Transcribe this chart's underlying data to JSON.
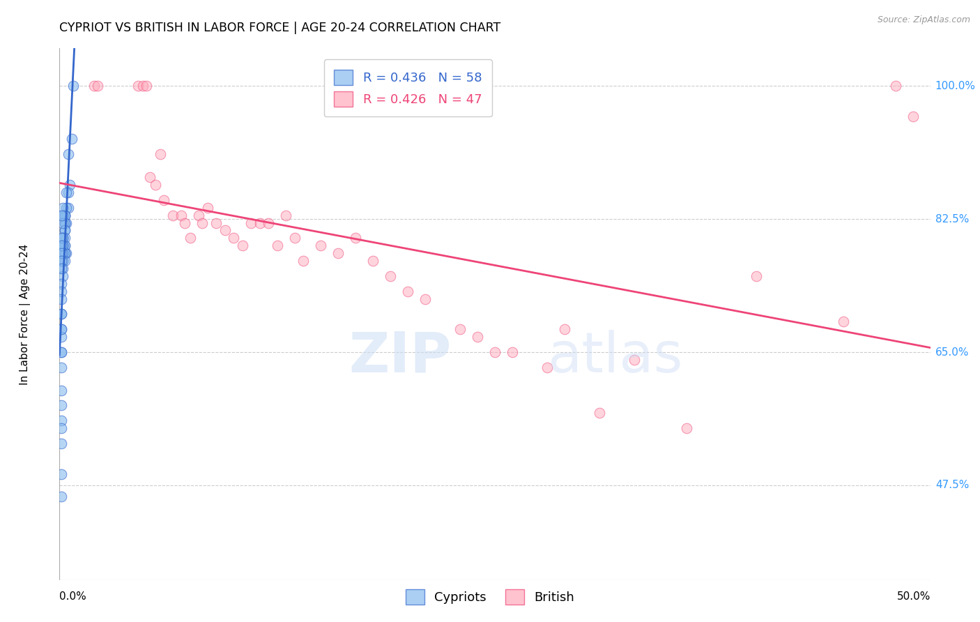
{
  "title": "CYPRIOT VS BRITISH IN LABOR FORCE | AGE 20-24 CORRELATION CHART",
  "source": "Source: ZipAtlas.com",
  "ylabel_label": "In Labor Force | Age 20-24",
  "ytick_labels": [
    "100.0%",
    "82.5%",
    "65.0%",
    "47.5%"
  ],
  "ytick_values": [
    1.0,
    0.825,
    0.65,
    0.475
  ],
  "xmin": 0.0,
  "xmax": 0.5,
  "ymin": 0.35,
  "ymax": 1.05,
  "legend_blue_r": "R = 0.436",
  "legend_blue_n": "N = 58",
  "legend_pink_r": "R = 0.426",
  "legend_pink_n": "N = 47",
  "blue_color": "#88bbee",
  "pink_color": "#ffaabb",
  "blue_line_color": "#3366cc",
  "pink_line_color": "#ee4477",
  "cypriot_x": [
    0.008,
    0.007,
    0.006,
    0.005,
    0.005,
    0.005,
    0.004,
    0.004,
    0.004,
    0.004,
    0.003,
    0.003,
    0.003,
    0.003,
    0.003,
    0.003,
    0.003,
    0.003,
    0.003,
    0.003,
    0.003,
    0.003,
    0.003,
    0.002,
    0.002,
    0.002,
    0.002,
    0.002,
    0.002,
    0.002,
    0.002,
    0.002,
    0.002,
    0.002,
    0.001,
    0.001,
    0.001,
    0.001,
    0.001,
    0.001,
    0.001,
    0.001,
    0.001,
    0.001,
    0.001,
    0.001,
    0.001,
    0.001,
    0.001,
    0.001,
    0.001,
    0.001,
    0.001,
    0.001,
    0.001,
    0.001,
    0.001,
    0.001
  ],
  "cypriot_y": [
    1.0,
    0.93,
    0.87,
    0.91,
    0.84,
    0.86,
    0.86,
    0.84,
    0.82,
    0.78,
    0.83,
    0.83,
    0.83,
    0.82,
    0.82,
    0.81,
    0.81,
    0.8,
    0.79,
    0.79,
    0.78,
    0.78,
    0.77,
    0.84,
    0.83,
    0.82,
    0.8,
    0.8,
    0.79,
    0.79,
    0.78,
    0.77,
    0.76,
    0.75,
    0.83,
    0.8,
    0.79,
    0.78,
    0.77,
    0.76,
    0.74,
    0.73,
    0.7,
    0.68,
    0.67,
    0.65,
    0.63,
    0.6,
    0.58,
    0.56,
    0.55,
    0.53,
    0.49,
    0.46,
    0.72,
    0.7,
    0.68,
    0.65
  ],
  "british_x": [
    0.02,
    0.022,
    0.045,
    0.048,
    0.05,
    0.052,
    0.055,
    0.058,
    0.06,
    0.065,
    0.07,
    0.072,
    0.075,
    0.08,
    0.082,
    0.085,
    0.09,
    0.095,
    0.1,
    0.105,
    0.11,
    0.115,
    0.12,
    0.125,
    0.13,
    0.135,
    0.14,
    0.15,
    0.16,
    0.17,
    0.18,
    0.19,
    0.2,
    0.21,
    0.23,
    0.24,
    0.25,
    0.26,
    0.28,
    0.29,
    0.31,
    0.33,
    0.36,
    0.4,
    0.45,
    0.48,
    0.49
  ],
  "british_y": [
    1.0,
    1.0,
    1.0,
    1.0,
    1.0,
    0.88,
    0.87,
    0.91,
    0.85,
    0.83,
    0.83,
    0.82,
    0.8,
    0.83,
    0.82,
    0.84,
    0.82,
    0.81,
    0.8,
    0.79,
    0.82,
    0.82,
    0.82,
    0.79,
    0.83,
    0.8,
    0.77,
    0.79,
    0.78,
    0.8,
    0.77,
    0.75,
    0.73,
    0.72,
    0.68,
    0.67,
    0.65,
    0.65,
    0.63,
    0.68,
    0.57,
    0.64,
    0.55,
    0.75,
    0.69,
    1.0,
    0.96
  ]
}
